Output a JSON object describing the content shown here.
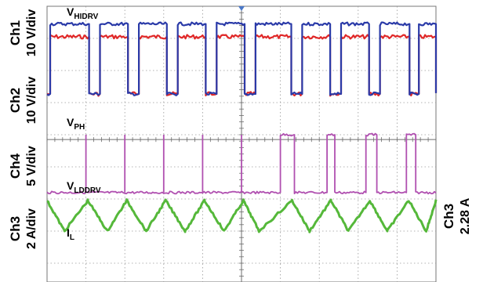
{
  "chart_data": {
    "type": "line",
    "title": "",
    "grid": true,
    "x_divisions": 10,
    "y_divisions": 8,
    "channel_labels": [
      {
        "name": "Ch1",
        "scale": "10 V/div"
      },
      {
        "name": "Ch2",
        "scale": "10 V/div"
      },
      {
        "name": "Ch4",
        "scale": "5 V/div"
      },
      {
        "name": "Ch3",
        "scale": "2 A/div"
      }
    ],
    "right_label": {
      "name": "Ch3",
      "value": "2.28 A"
    },
    "trace_labels": [
      {
        "main": "V",
        "sub": "HIDRV"
      },
      {
        "main": "V",
        "sub": "PH"
      },
      {
        "main": "V",
        "sub": "LDDRV"
      },
      {
        "main": "I",
        "sub": "L"
      }
    ],
    "series": [
      {
        "trace": "HIDRV",
        "color": "#2a3aa8",
        "high_div": 0.55,
        "low_div": 2.73,
        "on_intervals_div": [
          [
            0.05,
            1.08
          ],
          [
            1.35,
            2.08
          ],
          [
            2.35,
            3.08
          ],
          [
            3.35,
            4.08
          ],
          [
            4.35,
            5.08
          ],
          [
            5.35,
            6.28
          ],
          [
            6.55,
            7.28
          ],
          [
            7.55,
            8.28
          ],
          [
            8.55,
            9.28
          ],
          [
            9.55,
            9.98
          ]
        ]
      },
      {
        "trace": "PH",
        "color": "#e02828",
        "high_div": 0.95,
        "low_div": 2.73,
        "on_intervals_div": [
          [
            0.05,
            1.08
          ],
          [
            1.35,
            2.08
          ],
          [
            2.35,
            3.08
          ],
          [
            3.35,
            4.08
          ],
          [
            4.35,
            5.08
          ],
          [
            5.35,
            6.28
          ],
          [
            6.55,
            7.28
          ],
          [
            7.55,
            8.28
          ],
          [
            8.55,
            9.28
          ],
          [
            9.55,
            9.98
          ]
        ]
      },
      {
        "trace": "LDDRV",
        "color": "#b050b0",
        "high_div": 4.0,
        "low_div": 5.8,
        "on_intervals_div": [
          [
            6.0,
            6.35
          ],
          [
            7.2,
            7.4
          ],
          [
            8.2,
            8.45
          ],
          [
            9.2,
            9.45
          ]
        ],
        "spikes_div": [
          1.0,
          2.0,
          3.0,
          4.0,
          5.0
        ]
      },
      {
        "trace": "I_L",
        "color": "#55b83a",
        "peaks_div": [
          0.0,
          1.05,
          2.05,
          3.05,
          4.05,
          5.05,
          6.3,
          7.3,
          8.3,
          9.3,
          10.0
        ],
        "valleys_div": [
          0.45,
          1.55,
          2.55,
          3.55,
          4.55,
          5.45,
          6.75,
          7.75,
          8.75,
          9.75
        ],
        "peak_y_div": 6.05,
        "valley_y_div": 7.0
      }
    ]
  }
}
